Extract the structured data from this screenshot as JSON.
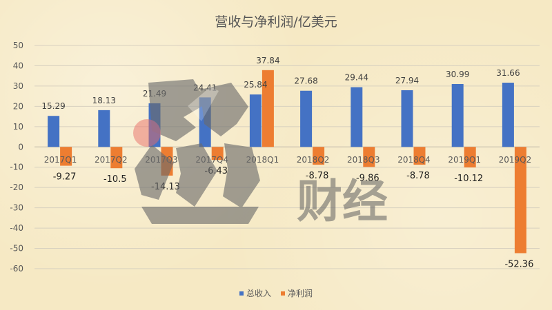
{
  "chart_data": {
    "type": "bar",
    "title": "营收与净利润/亿美元",
    "categories": [
      "2017Q1",
      "2017Q2",
      "2017Q3",
      "2017Q4",
      "2018Q1",
      "2018Q2",
      "2018Q3",
      "2018Q4",
      "2019Q1",
      "2019Q2"
    ],
    "series": [
      {
        "name": "总收入",
        "color": "#4472c4",
        "values": [
          15.29,
          18.13,
          21.49,
          24.41,
          25.84,
          27.68,
          29.44,
          27.94,
          30.99,
          31.66
        ]
      },
      {
        "name": "净利润",
        "color": "#ed7d31",
        "values": [
          -9.27,
          -10.5,
          -14.13,
          -6.43,
          37.84,
          -8.78,
          -9.86,
          -8.78,
          -10.12,
          -52.36
        ]
      }
    ],
    "series_labels": [
      [
        "15.29",
        "18.13",
        "21.49",
        "24.41",
        "25.84",
        "27.68",
        "29.44",
        "27.94",
        "30.99",
        "31.66"
      ],
      [
        "-9.27",
        "-10.5",
        "-14.13",
        "-6.43",
        "37.84",
        "-8.78",
        "-9.86",
        "-8.78",
        "-10.12",
        "-52.36"
      ]
    ],
    "ylim": [
      -60,
      50
    ],
    "yticks": [
      50,
      40,
      30,
      20,
      10,
      0,
      -10,
      -20,
      -30,
      -40,
      -50,
      -60
    ],
    "grid": true,
    "legend_position": "bottom"
  },
  "watermark": {
    "text": "财经",
    "logo_name": "watermark-logo"
  }
}
